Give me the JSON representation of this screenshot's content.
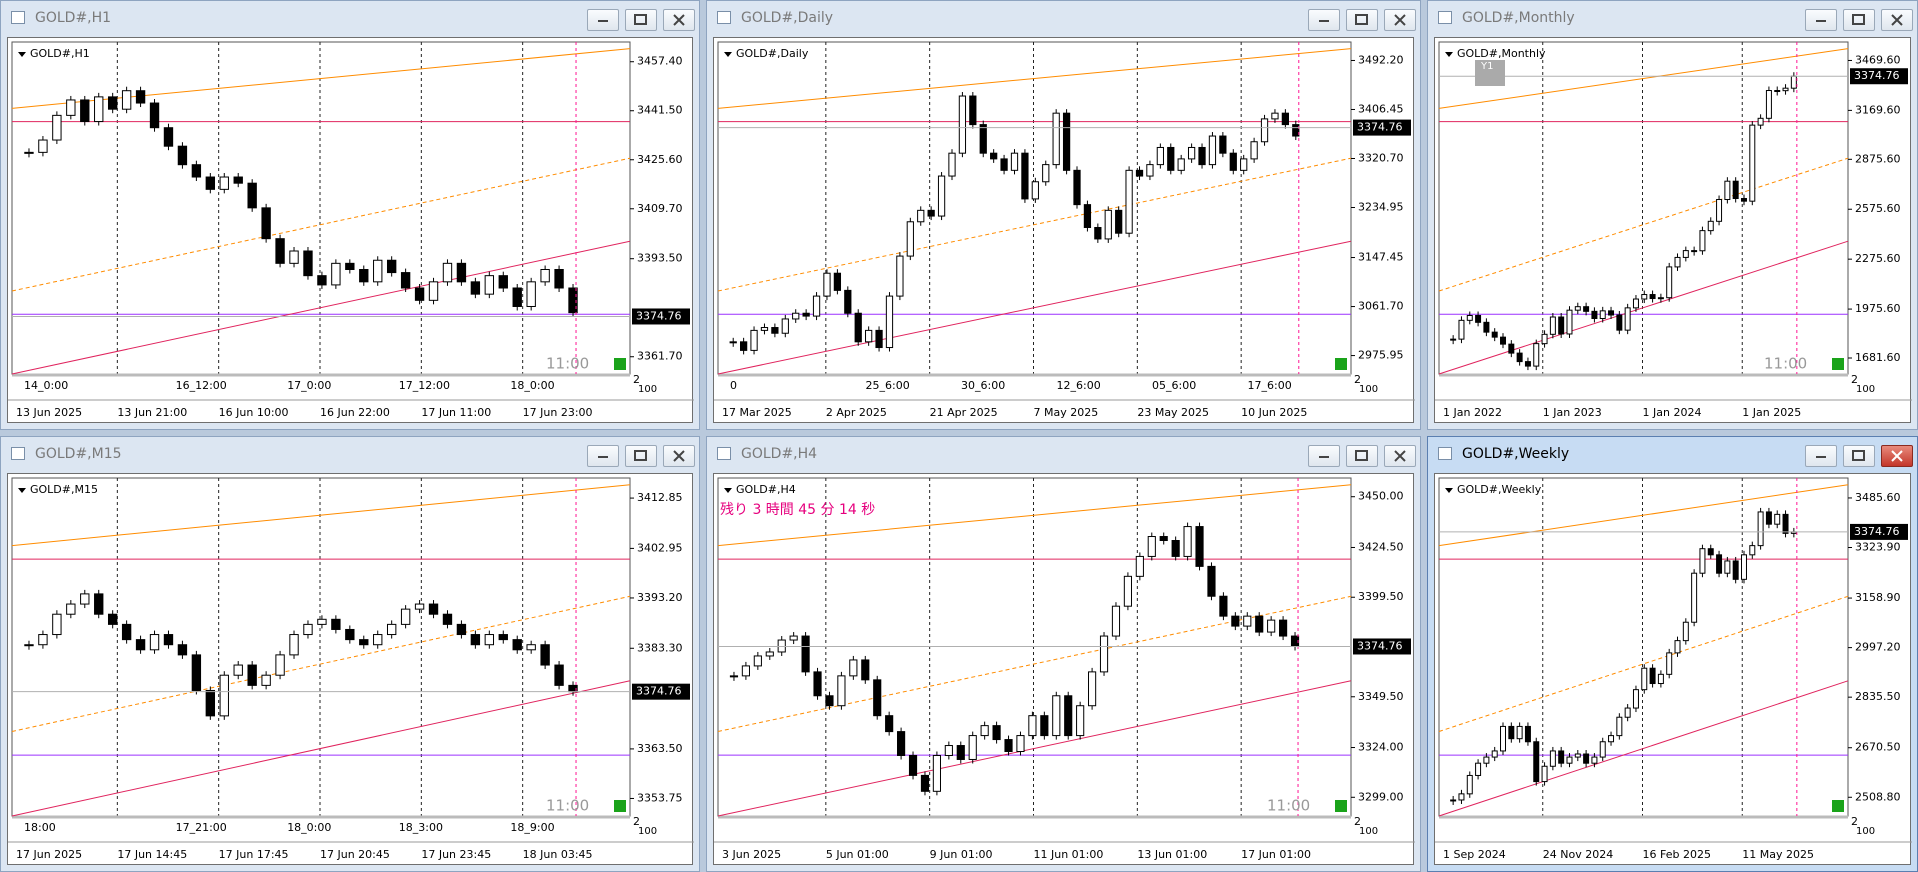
{
  "windows": [
    {
      "title": "GOLD#,H1",
      "chart_label": "GOLD#,H1",
      "ylim": [
        3356.1,
        3463.8
      ],
      "yticks": [
        {
          "value": 3457.4,
          "label": "3457.40"
        },
        {
          "value": 3441.5,
          "label": "3441.50"
        },
        {
          "value": 3425.6,
          "label": "3425.60"
        },
        {
          "value": 3409.7,
          "label": "3409.70"
        },
        {
          "value": 3393.5,
          "label": "3393.50"
        },
        {
          "value": 3361.7,
          "label": "3361.70"
        }
      ],
      "current_price": 3374.76,
      "timer": "11:00",
      "corner": [
        "2",
        "100"
      ],
      "inner_time_labels": [
        "14_0:00",
        "16_12:00",
        "17_0:00",
        "17_12:00",
        "18_0:00"
      ],
      "time_labels": [
        "13 Jun 2025",
        "13 Jun 21:00",
        "16 Jun 10:00",
        "16 Jun 22:00",
        "17 Jun 11:00",
        "17 Jun 23:00"
      ],
      "closes": [
        3428,
        3432,
        3440,
        3445,
        3438,
        3446,
        3442,
        3448,
        3444,
        3436,
        3430,
        3424,
        3420,
        3416,
        3420,
        3418,
        3410,
        3400,
        3392,
        3396,
        3388,
        3385,
        3392,
        3390,
        3386,
        3393,
        3389,
        3384,
        3380,
        3386,
        3392,
        3386,
        3382,
        3388,
        3384,
        3378,
        3386,
        3390,
        3384,
        3376
      ]
    },
    {
      "title": "GOLD#,Daily",
      "chart_label": "GOLD#,Daily",
      "ylim": [
        2943.7,
        3524.5
      ],
      "yticks": [
        {
          "value": 3492.2,
          "label": "3492.20"
        },
        3406.45,
        {
          "value": 3320.7,
          "label": "3320.70"
        },
        3234.95,
        3147.45,
        {
          "value": 3061.7,
          "label": "3061.70"
        },
        2975.95
      ],
      "current_price": 3374.76,
      "corner": [
        "2",
        "100"
      ],
      "inner_time_labels": [
        "0",
        "25_6:00",
        "30_6:00",
        "12_6:00",
        "05_6:00",
        "17_6:00"
      ],
      "time_labels": [
        "17 Mar 2025",
        "2 Apr 2025",
        "21 Apr 2025",
        "7 May 2025",
        "23 May 2025",
        "10 Jun 2025"
      ],
      "closes": [
        3000,
        2985,
        3020,
        3025,
        3015,
        3040,
        3050,
        3045,
        3080,
        3120,
        3090,
        3050,
        3000,
        3020,
        2990,
        3080,
        3150,
        3210,
        3230,
        3220,
        3290,
        3330,
        3430,
        3380,
        3330,
        3320,
        3300,
        3330,
        3250,
        3280,
        3310,
        3400,
        3300,
        3240,
        3200,
        3180,
        3230,
        3190,
        3300,
        3290,
        3310,
        3340,
        3300,
        3320,
        3340,
        3310,
        3360,
        3330,
        3300,
        3320,
        3350,
        3390,
        3400,
        3380,
        3360
      ]
    },
    {
      "title": "GOLD#,Monthly",
      "chart_label": "GOLD#,Monthly",
      "button": "Y1",
      "ylim": [
        1585.5,
        3580.5
      ],
      "yticks": [
        {
          "value": 3469.6,
          "label": "3469.60"
        },
        {
          "value": 3169.6,
          "label": "3169.60"
        },
        {
          "value": 2875.6,
          "label": "2875.60"
        },
        {
          "value": 2575.6,
          "label": "2575.60"
        },
        {
          "value": 2275.6,
          "label": "2275.60"
        },
        {
          "value": 1975.6,
          "label": "1975.60"
        },
        {
          "value": 1681.6,
          "label": "1681.60"
        }
      ],
      "current_price": 3374.76,
      "timer": "11:00",
      "corner": [
        "2",
        "100"
      ],
      "time_labels": [
        "1 Jan 2022",
        "1 Jan 2023",
        "1 Jan 2024",
        "1 Jan 2025"
      ],
      "closes": [
        1795,
        1908,
        1937,
        1896,
        1837,
        1807,
        1765,
        1711,
        1660,
        1633,
        1768,
        1824,
        1928,
        1826,
        1969,
        1990,
        1962,
        1919,
        1965,
        1940,
        1849,
        1983,
        2036,
        2063,
        2039,
        2044,
        2229,
        2286,
        2327,
        2326,
        2447,
        2503,
        2634,
        2744,
        2640,
        2624,
        3081,
        3122,
        3289,
        3288,
        3303,
        3374.76
      ]
    },
    {
      "title": "GOLD#,M15",
      "chart_label": "GOLD#,M15",
      "ylim": [
        3350.3,
        3416.8
      ],
      "yticks": [
        3412.85,
        3402.95,
        {
          "value": 3393.2,
          "label": "3393.20"
        },
        {
          "value": 3383.3,
          "label": "3383.30"
        },
        {
          "value": 3363.5,
          "label": "3363.50"
        },
        3353.75
      ],
      "current_price": 3374.76,
      "timer": "11:00",
      "corner": [
        "2",
        "100"
      ],
      "inner_time_labels": [
        "18:00",
        "17_21:00",
        "18_0:00",
        "18_3:00",
        "18_9:00"
      ],
      "time_labels": [
        "17 Jun 2025",
        "17 Jun 14:45",
        "17 Jun 17:45",
        "17 Jun 20:45",
        "17 Jun 23:45",
        "18 Jun 03:45"
      ],
      "closes": [
        3384,
        3386,
        3390,
        3392,
        3394,
        3390,
        3388,
        3385,
        3383,
        3386,
        3384,
        3382,
        3375,
        3370,
        3378,
        3380,
        3376,
        3378,
        3382,
        3386,
        3388,
        3389,
        3387,
        3385,
        3384,
        3386,
        3388,
        3391,
        3392,
        3390,
        3388,
        3386,
        3384,
        3386,
        3385,
        3383,
        3384,
        3380,
        3376,
        3374.76
      ]
    },
    {
      "title": "GOLD#,H4",
      "chart_label": "GOLD#,H4",
      "countdown": "残り 3 時間 45 分 14 秒",
      "ylim": [
        3289.6,
        3459.4
      ],
      "yticks": [
        {
          "value": 3450,
          "label": "3450.00"
        },
        {
          "value": 3424.5,
          "label": "3424.50"
        },
        {
          "value": 3399.5,
          "label": "3399.50"
        },
        {
          "value": 3349.5,
          "label": "3349.50"
        },
        {
          "value": 3324,
          "label": "3324.00"
        },
        {
          "value": 3299,
          "label": "3299.00"
        }
      ],
      "current_price": 3374.76,
      "timer": "11:00",
      "corner": [
        "2",
        "100"
      ],
      "time_labels": [
        "3 Jun 2025",
        "5 Jun 01:00",
        "9 Jun 01:00",
        "11 Jun 01:00",
        "13 Jun 01:00",
        "17 Jun 01:00"
      ],
      "closes": [
        3360,
        3365,
        3370,
        3372,
        3378,
        3380,
        3362,
        3350,
        3345,
        3360,
        3368,
        3358,
        3340,
        3332,
        3320,
        3310,
        3302,
        3320,
        3325,
        3318,
        3330,
        3335,
        3328,
        3322,
        3330,
        3340,
        3330,
        3350,
        3330,
        3345,
        3362,
        3380,
        3395,
        3410,
        3420,
        3430,
        3428,
        3420,
        3435,
        3415,
        3400,
        3390,
        3385,
        3390,
        3382,
        3388,
        3380,
        3374.76
      ]
    },
    {
      "title": "GOLD#,Weekly",
      "chart_label": "GOLD#,Weekly",
      "active": true,
      "ylim": [
        2447.7,
        3550.7
      ],
      "yticks": [
        {
          "value": 3485.6,
          "label": "3485.60"
        },
        {
          "value": 3323.9,
          "label": "3323.90"
        },
        {
          "value": 3158.9,
          "label": "3158.90"
        },
        {
          "value": 2997.2,
          "label": "2997.20"
        },
        {
          "value": 2835.5,
          "label": "2835.50"
        },
        {
          "value": 2670.5,
          "label": "2670.50"
        },
        {
          "value": 2508.8,
          "label": "2508.80"
        }
      ],
      "current_price": 3374.76,
      "corner": [
        "2",
        "100"
      ],
      "time_labels": [
        "1 Sep 2024",
        "24 Nov 2024",
        "16 Feb 2025",
        "11 May 2025"
      ],
      "closes": [
        2500,
        2520,
        2580,
        2620,
        2640,
        2660,
        2740,
        2700,
        2740,
        2690,
        2560,
        2610,
        2660,
        2620,
        2640,
        2650,
        2620,
        2640,
        2690,
        2710,
        2770,
        2800,
        2860,
        2930,
        2880,
        2910,
        2980,
        3020,
        3080,
        3240,
        3320,
        3300,
        3240,
        3280,
        3220,
        3300,
        3330,
        3440,
        3400,
        3432,
        3370,
        3374.76
      ]
    }
  ]
}
